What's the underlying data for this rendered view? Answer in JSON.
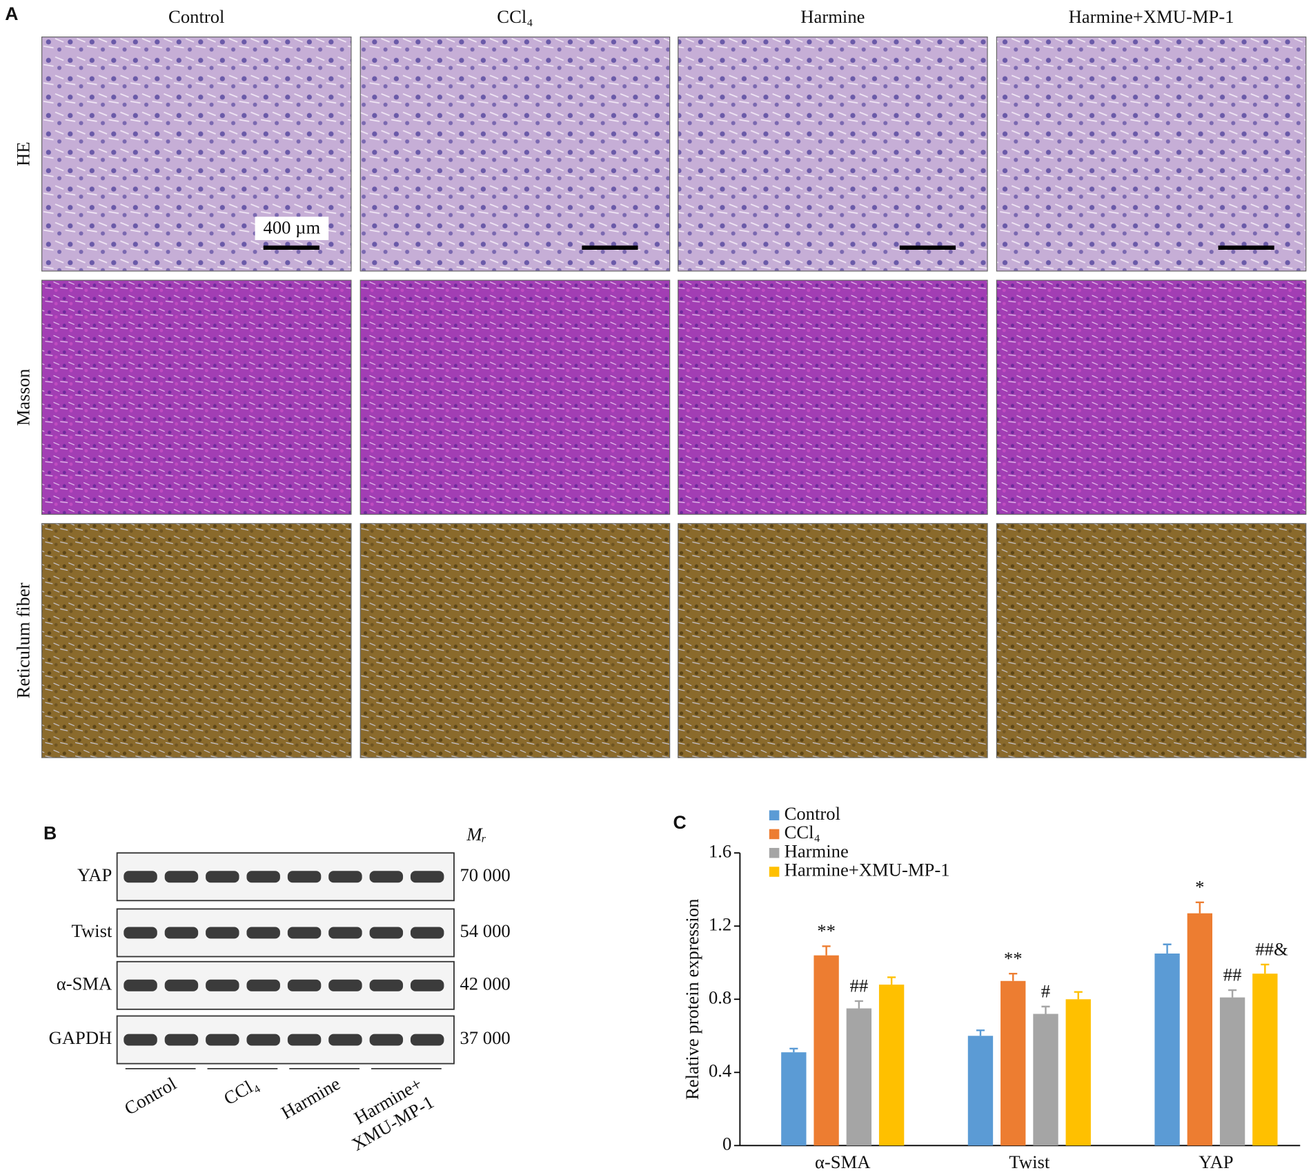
{
  "panel_a": {
    "label": "A",
    "columns": [
      "Control",
      "CCl₄",
      "Harmine",
      "Harmine+XMU-MP-1"
    ],
    "rows": [
      "HE",
      "Masson",
      "Reticulum fiber"
    ],
    "scale_bar": "400 µm"
  },
  "panel_b": {
    "label": "B",
    "mr_label": "Mᵣ",
    "proteins": [
      {
        "name": "YAP",
        "mr": "70 000"
      },
      {
        "name": "Twist",
        "mr": "54 000"
      },
      {
        "name": "α-SMA",
        "mr": "42 000"
      },
      {
        "name": "GAPDH",
        "mr": "37 000"
      }
    ],
    "groups": [
      [
        "Control"
      ],
      [
        "CCl₄"
      ],
      [
        "Harmine"
      ],
      [
        "Harmine+",
        "XMU-MP-1"
      ]
    ]
  },
  "chart_data": {
    "type": "bar",
    "label": "C",
    "y_label": "Relative protein expression",
    "categories": [
      "α-SMA",
      "Twist",
      "YAP"
    ],
    "series": [
      {
        "name": "Control",
        "color": "#5b9bd5",
        "values": [
          0.51,
          0.6,
          1.05
        ],
        "errors": [
          0.02,
          0.03,
          0.05
        ],
        "annotations": [
          null,
          null,
          null
        ]
      },
      {
        "name": "CCl₄",
        "color": "#ed7d31",
        "values": [
          1.04,
          0.9,
          1.27
        ],
        "errors": [
          0.05,
          0.04,
          0.06
        ],
        "annotations": [
          "**",
          "**",
          "*"
        ]
      },
      {
        "name": "Harmine",
        "color": "#a5a5a5",
        "values": [
          0.75,
          0.72,
          0.81
        ],
        "errors": [
          0.04,
          0.04,
          0.04
        ],
        "annotations": [
          "##",
          "#",
          "##"
        ]
      },
      {
        "name": "Harmine+XMU-MP-1",
        "color": "#ffc000",
        "values": [
          0.88,
          0.8,
          0.94
        ],
        "errors": [
          0.04,
          0.04,
          0.05
        ],
        "annotations": [
          null,
          null,
          "##&"
        ]
      }
    ],
    "ylim": [
      0,
      1.6
    ],
    "yticks": [
      0,
      0.4,
      0.8,
      1.2,
      1.6
    ],
    "legend": "top-left"
  }
}
